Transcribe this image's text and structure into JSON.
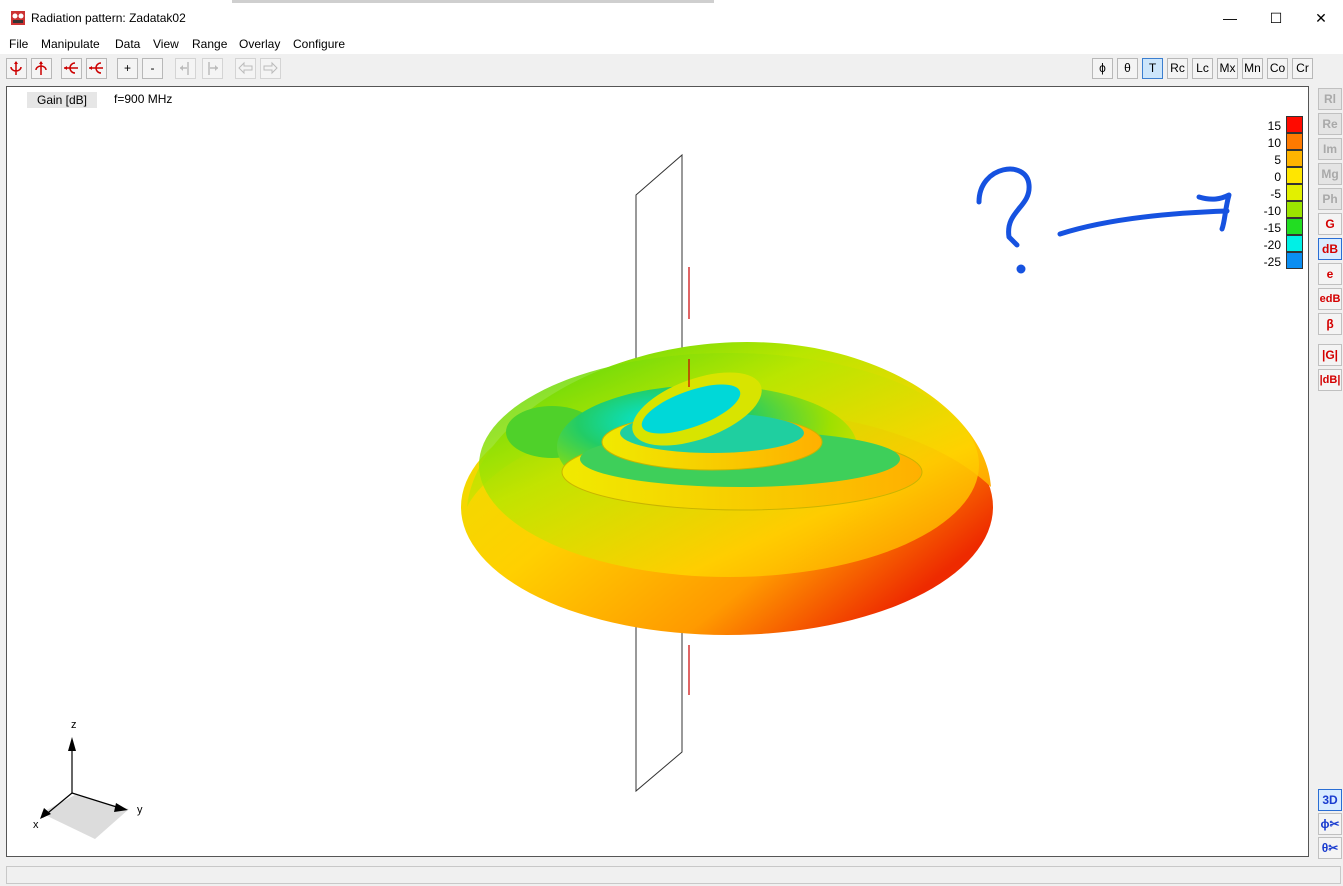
{
  "window": {
    "title": "Radiation pattern: Zadatak02",
    "minimize_glyph": "—",
    "maximize_glyph": "☐",
    "close_glyph": "✕"
  },
  "menu": [
    "File",
    "Manipulate",
    "Data",
    "View",
    "Range",
    "Overlay",
    "Configure"
  ],
  "toolbar_left": {
    "zoom_in": "+",
    "zoom_out": "-"
  },
  "toolbar_right": [
    "ϕ",
    "θ",
    "T",
    "Rc",
    "Lc",
    "Mx",
    "Mn",
    "Co",
    "Cr"
  ],
  "canvas": {
    "quantity_label": "Gain [dB]",
    "frequency_label": "f=900 MHz"
  },
  "legend": {
    "values": [
      "15",
      "10",
      "5",
      "0",
      "-5",
      "-10",
      "-15",
      "-20",
      "-25"
    ],
    "colors": [
      "#ff0a00",
      "#ff7a00",
      "#ffb400",
      "#ffe600",
      "#e2f000",
      "#9ce400",
      "#22dd22",
      "#00f0e6",
      "#0a8ef2"
    ]
  },
  "sidebar": [
    "Rl",
    "Re",
    "Im",
    "Mg",
    "Ph",
    "G",
    "dB",
    "e",
    "edB",
    "β",
    "|G|",
    "|dB|"
  ],
  "sidebar_bottom": [
    "3D",
    "ϕ✂",
    "θ✂"
  ],
  "axes": {
    "z": "z",
    "y": "y",
    "x": "x"
  },
  "annotation": {
    "question_mark": "?"
  },
  "colors": {
    "accent": "#2a6ed4",
    "annotation": "#1652e0",
    "gray_text": "#a9a9a9",
    "red_text": "#d40000"
  }
}
